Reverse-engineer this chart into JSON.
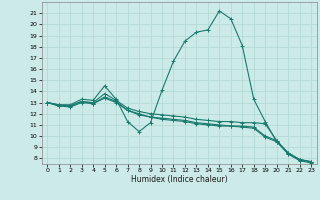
{
  "background_color": "#cceae7",
  "grid_color": "#b0d8d4",
  "line_color": "#1a7a6e",
  "xlabel": "Humidex (Indice chaleur)",
  "ylim": [
    7.5,
    22
  ],
  "xlim": [
    -0.5,
    23.5
  ],
  "yticks": [
    8,
    9,
    10,
    11,
    12,
    13,
    14,
    15,
    16,
    17,
    18,
    19,
    20,
    21
  ],
  "xticks": [
    0,
    1,
    2,
    3,
    4,
    5,
    6,
    7,
    8,
    9,
    10,
    11,
    12,
    13,
    14,
    15,
    16,
    17,
    18,
    19,
    20,
    21,
    22,
    23
  ],
  "series": [
    {
      "x": [
        0,
        1,
        2,
        3,
        4,
        5,
        6,
        7,
        8,
        9,
        10,
        11,
        12,
        13,
        14,
        15,
        16,
        17,
        18,
        19,
        20,
        21,
        22,
        23
      ],
      "y": [
        13,
        12.8,
        12.8,
        13.3,
        13.2,
        14.5,
        13.3,
        11.3,
        10.4,
        11.2,
        14.1,
        16.7,
        18.5,
        19.3,
        19.5,
        21.2,
        20.5,
        18.1,
        13.3,
        11.3,
        9.5,
        8.5,
        7.9,
        7.7
      ]
    },
    {
      "x": [
        0,
        1,
        2,
        3,
        4,
        5,
        6,
        7,
        8,
        9,
        10,
        11,
        12,
        13,
        14,
        15,
        16,
        17,
        18,
        19,
        20,
        21,
        22,
        23
      ],
      "y": [
        13,
        12.8,
        12.7,
        13.1,
        13.0,
        13.8,
        13.2,
        12.5,
        12.2,
        12.0,
        11.9,
        11.8,
        11.7,
        11.5,
        11.4,
        11.3,
        11.3,
        11.2,
        11.2,
        11.1,
        9.6,
        8.5,
        7.9,
        7.7
      ]
    },
    {
      "x": [
        0,
        1,
        2,
        3,
        4,
        5,
        6,
        7,
        8,
        9,
        10,
        11,
        12,
        13,
        14,
        15,
        16,
        17,
        18,
        19,
        20,
        21,
        22,
        23
      ],
      "y": [
        13,
        12.7,
        12.7,
        13.1,
        12.9,
        13.5,
        13.1,
        12.3,
        12.0,
        11.7,
        11.6,
        11.5,
        11.4,
        11.2,
        11.1,
        11.0,
        10.9,
        10.9,
        10.8,
        10.0,
        9.6,
        8.4,
        7.9,
        7.7
      ]
    },
    {
      "x": [
        0,
        1,
        2,
        3,
        4,
        5,
        6,
        7,
        8,
        9,
        10,
        11,
        12,
        13,
        14,
        15,
        16,
        17,
        18,
        19,
        20,
        21,
        22,
        23
      ],
      "y": [
        13,
        12.7,
        12.6,
        13.0,
        12.9,
        13.4,
        13.0,
        12.3,
        11.9,
        11.7,
        11.5,
        11.4,
        11.3,
        11.1,
        11.0,
        10.9,
        10.9,
        10.8,
        10.7,
        9.9,
        9.5,
        8.4,
        7.8,
        7.6
      ]
    }
  ]
}
